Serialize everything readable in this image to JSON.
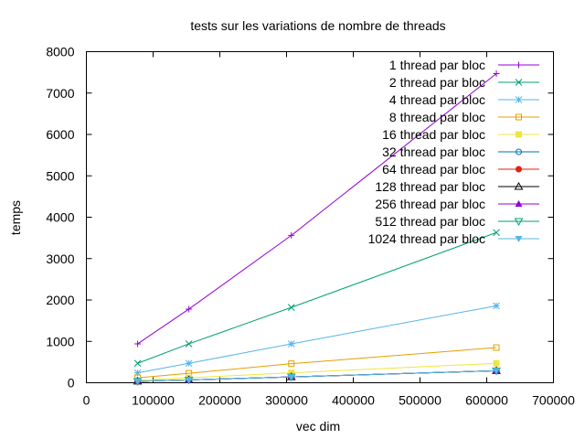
{
  "chart_data": {
    "type": "line",
    "title": "tests sur les variations  de nombre de threads",
    "xlabel": "vec dim",
    "ylabel": "temps",
    "xlim": [
      0,
      700000
    ],
    "ylim": [
      0,
      8000
    ],
    "xticks": [
      0,
      100000,
      200000,
      300000,
      400000,
      500000,
      600000,
      700000
    ],
    "yticks": [
      0,
      1000,
      2000,
      3000,
      4000,
      5000,
      6000,
      7000,
      8000
    ],
    "xtick_labels": [
      "0",
      "100000",
      "200000",
      "300000",
      "400000",
      "500000",
      "600000",
      "700000"
    ],
    "ytick_labels": [
      "0",
      "1000",
      "2000",
      "3000",
      "4000",
      "5000",
      "6000",
      "7000",
      "8000"
    ],
    "grid": false,
    "legend_position": "top-right",
    "x": [
      76800,
      153600,
      307200,
      614400
    ],
    "series": [
      {
        "name": "1 thread par bloc",
        "values": [
          940,
          1780,
          3560,
          7470
        ],
        "color": "#9400d3",
        "marker": "plus"
      },
      {
        "name": "2 thread par bloc",
        "values": [
          470,
          940,
          1820,
          3630
        ],
        "color": "#009e73",
        "marker": "cross"
      },
      {
        "name": "4 thread par bloc",
        "values": [
          240,
          470,
          940,
          1860
        ],
        "color": "#56b4e9",
        "marker": "star"
      },
      {
        "name": "8 thread par bloc",
        "values": [
          120,
          230,
          460,
          850
        ],
        "color": "#e69f00",
        "marker": "box"
      },
      {
        "name": "16 thread par bloc",
        "values": [
          60,
          120,
          240,
          470
        ],
        "color": "#f0e442",
        "marker": "filled-box"
      },
      {
        "name": "32 thread par bloc",
        "values": [
          35,
          70,
          140,
          290
        ],
        "color": "#0072b2",
        "marker": "circle"
      },
      {
        "name": "64 thread par bloc",
        "values": [
          35,
          70,
          140,
          290
        ],
        "color": "#e51e10",
        "marker": "filled-circle"
      },
      {
        "name": "128 thread par bloc",
        "values": [
          35,
          70,
          140,
          290
        ],
        "color": "#000000",
        "marker": "triangle"
      },
      {
        "name": "256 thread par bloc",
        "values": [
          35,
          70,
          140,
          290
        ],
        "color": "#9400d3",
        "marker": "filled-triangle"
      },
      {
        "name": "512 thread par bloc",
        "values": [
          35,
          70,
          140,
          290
        ],
        "color": "#009e73",
        "marker": "inv-triangle"
      },
      {
        "name": "1024 thread par bloc",
        "values": [
          35,
          70,
          140,
          290
        ],
        "color": "#56b4e9",
        "marker": "filled-inv-triangle"
      }
    ]
  }
}
